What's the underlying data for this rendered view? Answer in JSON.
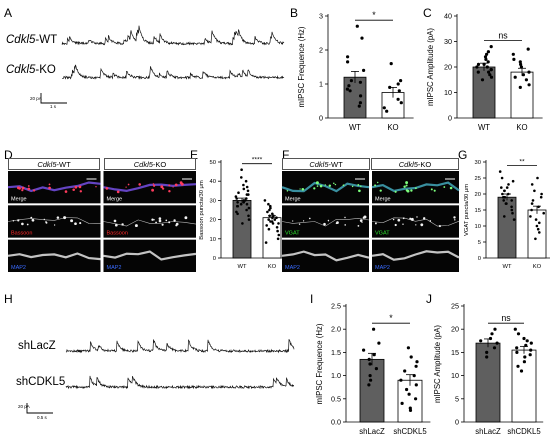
{
  "panels": {
    "A": "A",
    "B": "B",
    "C": "C",
    "D": "D",
    "E": "E",
    "F": "F",
    "G": "G",
    "H": "H",
    "I": "I",
    "J": "J"
  },
  "traces": {
    "top_wt": "Cdkl5",
    "top_wt_suffix": "-WT",
    "top_ko": "Cdkl5",
    "top_ko_suffix": "-KO",
    "top_scale_y": "20 pA",
    "top_scale_x": "1 s",
    "bottom_1": "shLacZ",
    "bottom_2": "shCDKL5",
    "bottom_scale_y": "20 pA",
    "bottom_scale_x": "0.5 s"
  },
  "micro": {
    "D": {
      "col_wt": "Cdkl5",
      "col_wt_suffix": "-WT",
      "col_ko": "Cdkl5",
      "col_ko_suffix": "-KO",
      "rows": [
        "Merge",
        "Bassoon",
        "MAP2"
      ],
      "row_colors": [
        "#ffffff",
        "#ff2a2a",
        "#3a6bff"
      ]
    },
    "F": {
      "col_wt": "Cdkl5",
      "col_wt_suffix": "-WT",
      "col_ko": "Cdkl5",
      "col_ko_suffix": "-KO",
      "rows": [
        "Merge",
        "VGAT",
        "MAP2"
      ],
      "row_colors": [
        "#ffffff",
        "#2ee52e",
        "#3a6bff"
      ]
    }
  },
  "chart_data": [
    {
      "id": "B",
      "type": "bar",
      "ylabel": "mIPSC Frequence (Hz)",
      "categories": [
        "WT",
        "KO"
      ],
      "values": [
        1.2,
        0.75
      ],
      "errors": [
        0.17,
        0.15
      ],
      "ylim": [
        0,
        3
      ],
      "yticks": [
        0,
        1,
        2,
        3
      ],
      "significance": "*",
      "bar_colors": [
        "#5f5f5f",
        "#ffffff"
      ],
      "points": [
        [
          2.7,
          2.35,
          1.8,
          1.65,
          1.4,
          1.1,
          1.05,
          0.95,
          0.85,
          0.8,
          0.65,
          0.45,
          0.35
        ],
        [
          1.6,
          1.1,
          1.0,
          0.9,
          0.8,
          0.55,
          0.45,
          0.3,
          0.2
        ]
      ]
    },
    {
      "id": "C",
      "type": "bar",
      "ylabel": "mIPSC Amplitude (pA)",
      "categories": [
        "WT",
        "KO"
      ],
      "values": [
        20,
        18
      ],
      "errors": [
        1.5,
        1.5
      ],
      "ylim": [
        0,
        40
      ],
      "yticks": [
        0,
        10,
        20,
        30,
        40
      ],
      "significance": "ns",
      "bar_colors": [
        "#5f5f5f",
        "#ffffff"
      ],
      "points": [
        [
          28,
          26,
          25,
          24,
          23,
          22,
          21,
          21,
          20,
          20,
          19,
          19,
          18,
          18,
          17,
          16,
          15
        ],
        [
          27,
          25,
          23,
          22,
          21,
          20,
          18,
          17,
          16,
          15,
          13,
          12
        ]
      ]
    },
    {
      "id": "E",
      "type": "bar",
      "ylabel": "Bassoon puncta/30 μm",
      "categories": [
        "WT",
        "KO"
      ],
      "values": [
        30,
        21
      ],
      "errors": [
        1.2,
        1.0
      ],
      "ylim": [
        0,
        50
      ],
      "yticks": [
        0,
        10,
        20,
        30,
        40,
        50
      ],
      "significance": "****",
      "bar_colors": [
        "#5f5f5f",
        "#ffffff"
      ],
      "points": [
        [
          46,
          42,
          40,
          38,
          37,
          36,
          35,
          34,
          33,
          33,
          32,
          31,
          31,
          30,
          30,
          29,
          29,
          28,
          28,
          27,
          27,
          26,
          25,
          24,
          23,
          22,
          20,
          18
        ],
        [
          30,
          28,
          27,
          26,
          25,
          24,
          23,
          22,
          22,
          21,
          21,
          20,
          20,
          19,
          19,
          18,
          18,
          17,
          16,
          15,
          14,
          12,
          10,
          8
        ]
      ]
    },
    {
      "id": "G",
      "type": "bar",
      "ylabel": "VGAT puncta/30 μm",
      "categories": [
        "WT",
        "KO"
      ],
      "values": [
        19,
        15
      ],
      "errors": [
        1.0,
        1.2
      ],
      "ylim": [
        0,
        30
      ],
      "yticks": [
        0,
        5,
        10,
        15,
        20,
        25,
        30
      ],
      "significance": "**",
      "bar_colors": [
        "#5f5f5f",
        "#ffffff"
      ],
      "points": [
        [
          27,
          25,
          24,
          23,
          22,
          22,
          21,
          21,
          20,
          20,
          19,
          19,
          18,
          18,
          17,
          17,
          16,
          15,
          14,
          13,
          12
        ],
        [
          25,
          23,
          21,
          20,
          19,
          18,
          17,
          16,
          15,
          14,
          13,
          12,
          11,
          10,
          9,
          8,
          6
        ]
      ]
    },
    {
      "id": "I",
      "type": "bar",
      "ylabel": "mIPSC Frequence (Hz)",
      "categories": [
        "shLacZ",
        "shCDKL5"
      ],
      "values": [
        1.35,
        0.9
      ],
      "errors": [
        0.13,
        0.12
      ],
      "ylim": [
        0,
        2.5
      ],
      "yticks": [
        0,
        0.5,
        1,
        1.5,
        2,
        2.5
      ],
      "yticklabels": [
        "0.0",
        "0.5",
        "1.0",
        "1.5",
        "2.0",
        "2.5"
      ],
      "significance": "*",
      "bar_colors": [
        "#5f5f5f",
        "#ffffff"
      ],
      "points": [
        [
          2.0,
          1.7,
          1.55,
          1.45,
          1.35,
          1.25,
          1.15,
          1.0,
          0.9,
          0.8
        ],
        [
          1.6,
          1.4,
          1.3,
          1.2,
          1.1,
          1.0,
          0.9,
          0.8,
          0.7,
          0.6,
          0.5,
          0.4,
          0.3,
          0.25
        ]
      ]
    },
    {
      "id": "J",
      "type": "bar",
      "ylabel": "mIPSC Amplitude (pA)",
      "categories": [
        "shLacZ",
        "shCDKL5"
      ],
      "values": [
        17,
        15.5
      ],
      "errors": [
        0.9,
        0.8
      ],
      "ylim": [
        0,
        25
      ],
      "yticks": [
        0,
        5,
        10,
        15,
        20,
        25
      ],
      "significance": "ns",
      "bar_colors": [
        "#5f5f5f",
        "#ffffff"
      ],
      "points": [
        [
          20,
          19,
          18,
          17.5,
          17,
          16,
          15,
          14
        ],
        [
          20,
          19,
          18,
          17.5,
          17,
          16.5,
          16,
          15.5,
          15,
          14.5,
          14,
          13,
          12,
          11
        ]
      ]
    }
  ]
}
